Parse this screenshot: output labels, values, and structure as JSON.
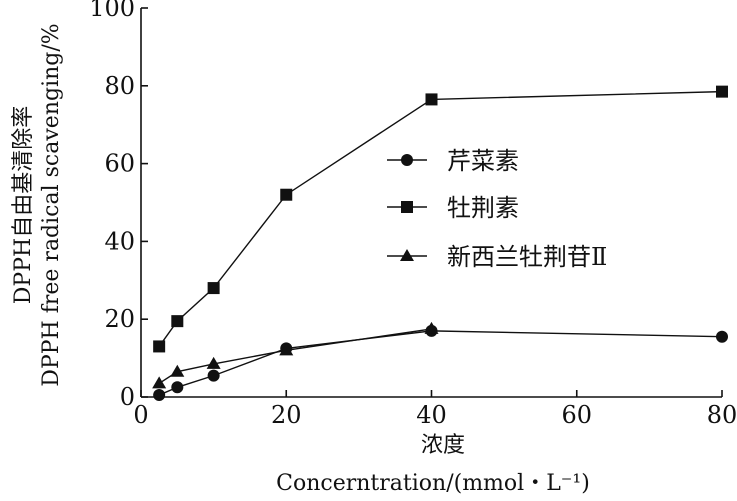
{
  "chart_data": {
    "type": "line",
    "xlabel": "浓度",
    "xlabel_en": "Concerntration/(mmol・L⁻¹)",
    "ylabel": "DPPH自由基清除率",
    "ylabel_en": "DPPH free radical scavenging/%",
    "xlim": [
      0,
      80
    ],
    "ylim": [
      0,
      100
    ],
    "xticks": [
      0,
      20,
      40,
      60,
      80
    ],
    "yticks": [
      0,
      20,
      40,
      60,
      80,
      100
    ],
    "grid": false,
    "legend_position": "center-right",
    "series": [
      {
        "name": "芹菜素",
        "marker": "circle",
        "x": [
          2.5,
          5,
          10,
          20,
          40,
          80
        ],
        "y": [
          0.5,
          2.5,
          5.5,
          12.5,
          17.0,
          15.5
        ]
      },
      {
        "name": "牡荆素",
        "marker": "square",
        "x": [
          2.5,
          5,
          10,
          20,
          40,
          80
        ],
        "y": [
          13.0,
          19.5,
          28.0,
          52.0,
          76.5,
          78.5
        ]
      },
      {
        "name": "新西兰牡荆苷Ⅱ",
        "marker": "triangle",
        "x": [
          2.5,
          5,
          10,
          20,
          40
        ],
        "y": [
          3.5,
          6.5,
          8.5,
          12.0,
          17.5
        ]
      }
    ]
  }
}
